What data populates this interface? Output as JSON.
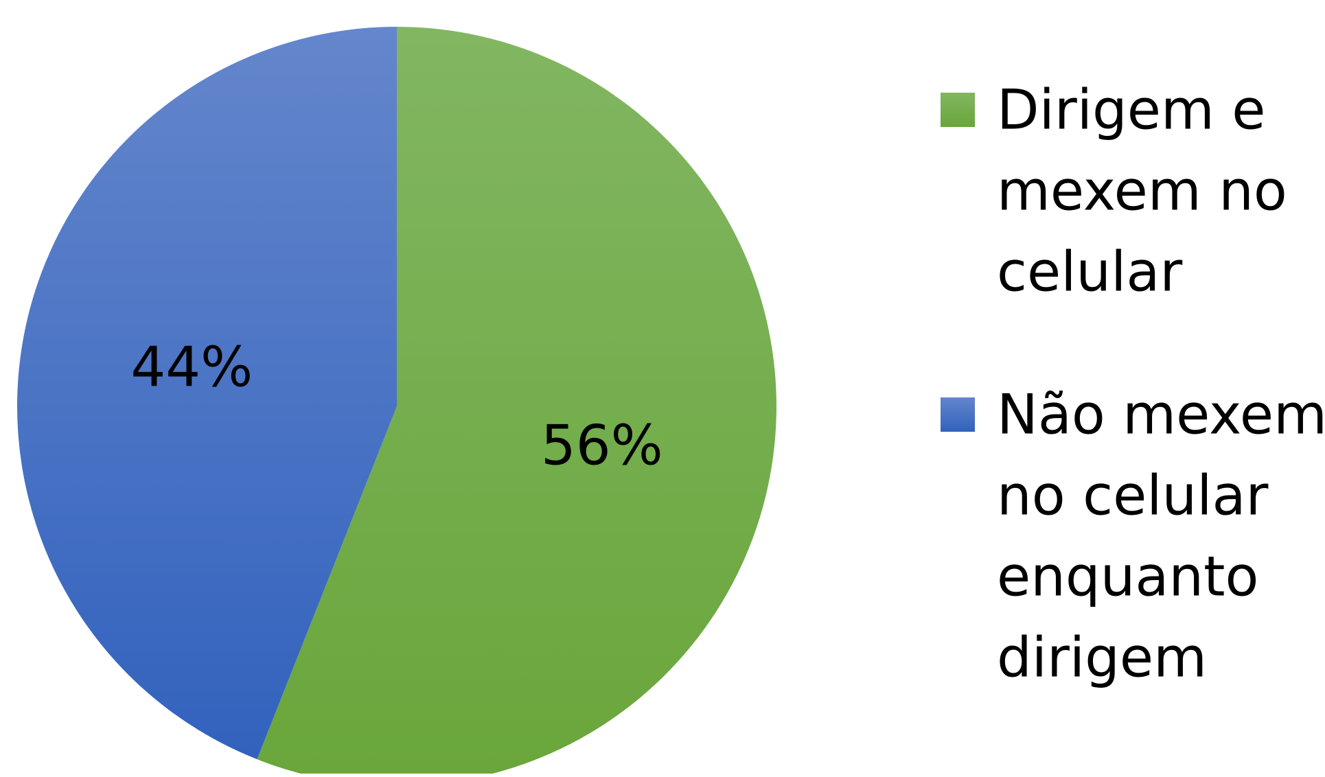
{
  "chart_data": {
    "type": "pie",
    "title": "",
    "slices": [
      {
        "label_lines": [
          "Dirigem e",
          "mexem no",
          "celular"
        ],
        "value": 56,
        "data_label": "56%",
        "color_top": "#82b662",
        "color_bottom": "#69a63a"
      },
      {
        "label_lines": [
          "Não mexem",
          "no celular",
          "enquanto",
          "dirigem"
        ],
        "value": 44,
        "data_label": "44%",
        "color_top": "#6486cc",
        "color_bottom": "#3262bd"
      }
    ],
    "start_angle": "12 o'clock",
    "direction": "clockwise",
    "legend_position": "right",
    "gradient": "vertical"
  }
}
